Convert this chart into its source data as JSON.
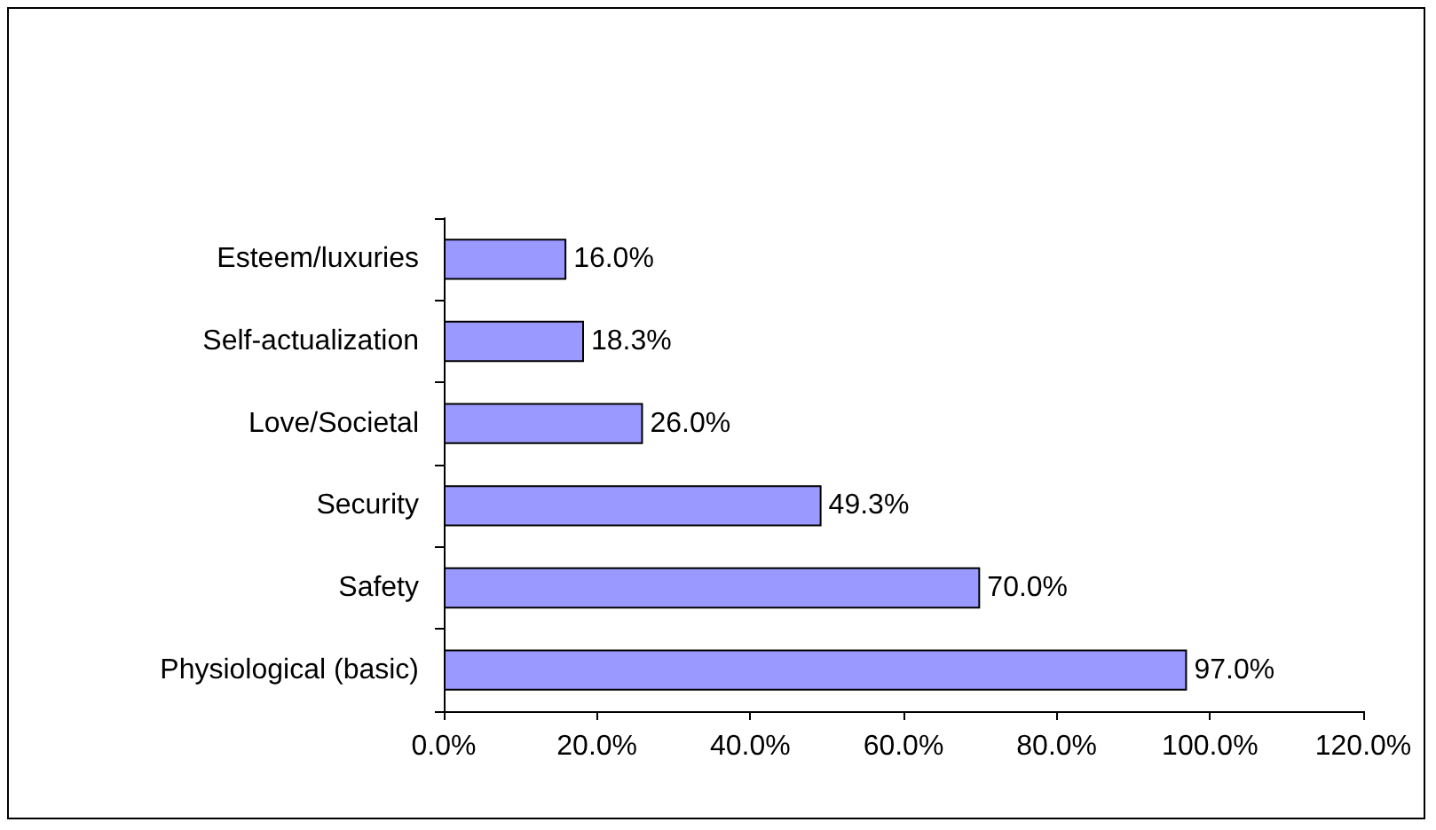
{
  "chart_data": {
    "type": "bar",
    "orientation": "horizontal",
    "categories": [
      "Esteem/luxuries",
      "Self-actualization",
      "Love/Societal",
      "Security",
      "Safety",
      "Physiological (basic)"
    ],
    "series": [
      {
        "color": "#9999ff",
        "values": [
          16.0,
          18.3,
          26.0,
          49.3,
          70.0,
          97.0
        ],
        "value_labels": [
          "16.0%",
          "18.3%",
          "26.0%",
          "49.3%",
          "70.0%",
          "97.0%"
        ]
      }
    ],
    "xlim": [
      0,
      120
    ],
    "xticks": [
      {
        "value": 0,
        "label": "0.0%"
      },
      {
        "value": 20,
        "label": "20.0%"
      },
      {
        "value": 40,
        "label": "40.0%"
      },
      {
        "value": 60,
        "label": "60.0%"
      },
      {
        "value": 80,
        "label": "80.0%"
      },
      {
        "value": 100,
        "label": "100.0%"
      },
      {
        "value": 120,
        "label": "120.0%"
      }
    ],
    "grid": false
  }
}
